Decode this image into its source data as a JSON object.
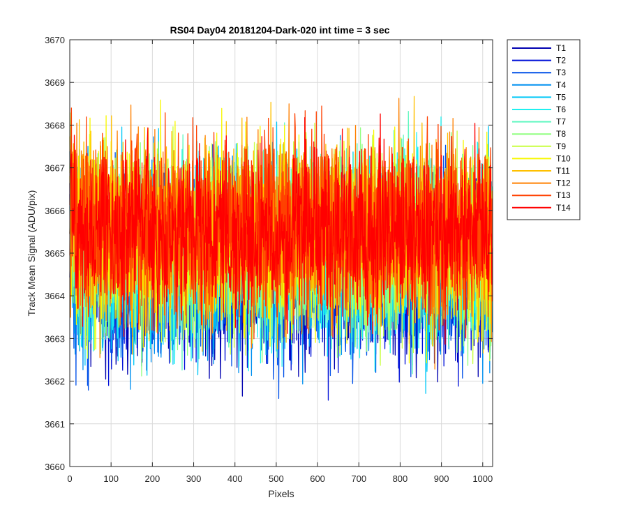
{
  "chart_data": {
    "type": "line",
    "title": "RS04 Day04 20181204-Dark-020 int time = 3 sec",
    "xlabel": "Pixels",
    "ylabel": "Track Mean Signal (ADU/pix)",
    "xlim": [
      0,
      1024
    ],
    "ylim": [
      3660,
      3670
    ],
    "xticks": [
      "0",
      "100",
      "200",
      "300",
      "400",
      "500",
      "600",
      "700",
      "800",
      "900",
      "1000"
    ],
    "yticks": [
      "3660",
      "3661",
      "3662",
      "3663",
      "3664",
      "3665",
      "3666",
      "3667",
      "3668",
      "3669",
      "3670"
    ],
    "grid": true,
    "legend_position": "outside-right-top",
    "points_per_series": 1024,
    "series": [
      {
        "name": "T1",
        "color": "#0000b0",
        "mean": 3664.5,
        "noise_sd": 1.05
      },
      {
        "name": "T2",
        "color": "#0010d8",
        "mean": 3664.6,
        "noise_sd": 1.05
      },
      {
        "name": "T3",
        "color": "#0050e8",
        "mean": 3664.7,
        "noise_sd": 1.05
      },
      {
        "name": "T4",
        "color": "#0090f0",
        "mean": 3664.8,
        "noise_sd": 1.05
      },
      {
        "name": "T5",
        "color": "#00c8f8",
        "mean": 3664.9,
        "noise_sd": 1.05
      },
      {
        "name": "T6",
        "color": "#20f0f0",
        "mean": 3665.0,
        "noise_sd": 1.05
      },
      {
        "name": "T7",
        "color": "#60f8c0",
        "mean": 3665.1,
        "noise_sd": 1.05
      },
      {
        "name": "T8",
        "color": "#90ff80",
        "mean": 3665.2,
        "noise_sd": 1.05
      },
      {
        "name": "T9",
        "color": "#c8ff40",
        "mean": 3665.3,
        "noise_sd": 1.05
      },
      {
        "name": "T10",
        "color": "#f8f800",
        "mean": 3665.4,
        "noise_sd": 1.05
      },
      {
        "name": "T11",
        "color": "#ffc000",
        "mean": 3665.5,
        "noise_sd": 1.05
      },
      {
        "name": "T12",
        "color": "#ff8000",
        "mean": 3665.6,
        "noise_sd": 1.05
      },
      {
        "name": "T13",
        "color": "#ff4000",
        "mean": 3665.6,
        "noise_sd": 1.05
      },
      {
        "name": "T14",
        "color": "#ff0000",
        "mean": 3665.5,
        "noise_sd": 1.0
      }
    ]
  }
}
